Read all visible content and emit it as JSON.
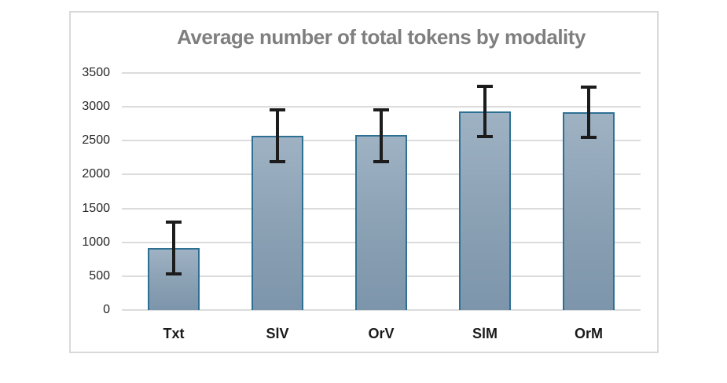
{
  "chart_data": {
    "type": "bar",
    "title": "Average number of total tokens by modality",
    "categories": [
      "Txt",
      "SlV",
      "OrV",
      "SlM",
      "OrM"
    ],
    "values": [
      920,
      2570,
      2585,
      2930,
      2925
    ],
    "error_low": [
      535,
      2190,
      2195,
      2560,
      2545
    ],
    "error_high": [
      1300,
      2950,
      2955,
      3305,
      3295
    ],
    "ylim": [
      0,
      3500
    ],
    "yticks": [
      0,
      500,
      1000,
      1500,
      2000,
      2500,
      3000,
      3500
    ],
    "xlabel": "",
    "ylabel": "",
    "grid": true,
    "legend": false,
    "colors": {
      "bar_fill_top": "#9eb2c3",
      "bar_fill_bottom": "#7d95ab",
      "bar_border": "#2e7093",
      "error_bar": "#1c1c1c",
      "gridline": "#dcdcdc",
      "title": "#7f7f7f",
      "tick_label": "#262626",
      "frame_border": "#d9d9d9",
      "background": "#ffffff"
    }
  }
}
